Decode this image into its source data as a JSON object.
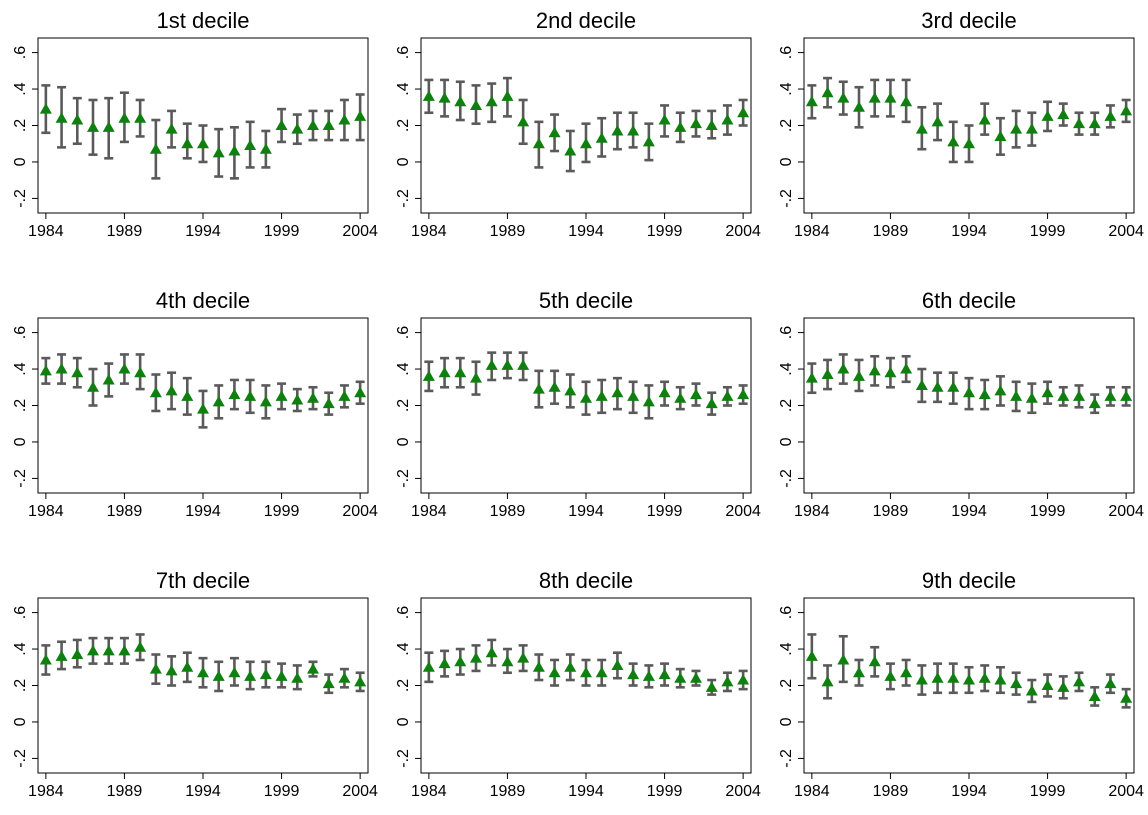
{
  "chart_data": [
    {
      "type": "scatter",
      "title": "1st decile",
      "x": [
        1984,
        1985,
        1986,
        1987,
        1988,
        1989,
        1990,
        1991,
        1992,
        1993,
        1994,
        1995,
        1996,
        1997,
        1998,
        1999,
        2000,
        2001,
        2002,
        2003,
        2004
      ],
      "y": [
        0.29,
        0.24,
        0.23,
        0.19,
        0.19,
        0.24,
        0.24,
        0.07,
        0.18,
        0.1,
        0.1,
        0.05,
        0.06,
        0.09,
        0.07,
        0.2,
        0.18,
        0.2,
        0.2,
        0.23,
        0.25
      ],
      "lower": [
        0.16,
        0.08,
        0.1,
        0.04,
        0.02,
        0.11,
        0.14,
        -0.09,
        0.08,
        0.02,
        0.0,
        -0.08,
        -0.09,
        -0.03,
        -0.03,
        0.11,
        0.1,
        0.12,
        0.12,
        0.12,
        0.12
      ],
      "upper": [
        0.42,
        0.41,
        0.35,
        0.34,
        0.35,
        0.38,
        0.34,
        0.23,
        0.28,
        0.21,
        0.2,
        0.18,
        0.19,
        0.22,
        0.17,
        0.29,
        0.26,
        0.28,
        0.28,
        0.34,
        0.37
      ],
      "xticks": [
        "1984",
        "1989",
        "1994",
        "1999",
        "2004"
      ],
      "xtick_values": [
        1984,
        1989,
        1994,
        1999,
        2004
      ],
      "yticks": [
        "-.2",
        "0",
        ".2",
        ".4",
        ".6"
      ],
      "ytick_values": [
        -0.2,
        0,
        0.2,
        0.4,
        0.6
      ],
      "xlim": [
        1983.5,
        2004.5
      ],
      "ylim": [
        -0.28,
        0.68
      ],
      "marker_color": "#0f7f0f",
      "ci_color": "#5a5a5a"
    },
    {
      "type": "scatter",
      "title": "2nd decile",
      "x": [
        1984,
        1985,
        1986,
        1987,
        1988,
        1989,
        1990,
        1991,
        1992,
        1993,
        1994,
        1995,
        1996,
        1997,
        1998,
        1999,
        2000,
        2001,
        2002,
        2003,
        2004
      ],
      "y": [
        0.36,
        0.35,
        0.33,
        0.31,
        0.33,
        0.36,
        0.22,
        0.1,
        0.16,
        0.06,
        0.1,
        0.13,
        0.17,
        0.17,
        0.11,
        0.23,
        0.19,
        0.21,
        0.2,
        0.23,
        0.27
      ],
      "lower": [
        0.27,
        0.25,
        0.23,
        0.21,
        0.22,
        0.25,
        0.1,
        -0.03,
        0.06,
        -0.05,
        0.0,
        0.03,
        0.07,
        0.08,
        0.01,
        0.14,
        0.11,
        0.14,
        0.13,
        0.15,
        0.2
      ],
      "upper": [
        0.45,
        0.45,
        0.44,
        0.42,
        0.43,
        0.46,
        0.34,
        0.22,
        0.26,
        0.17,
        0.21,
        0.24,
        0.27,
        0.27,
        0.21,
        0.31,
        0.27,
        0.28,
        0.28,
        0.31,
        0.34
      ],
      "xticks": [
        "1984",
        "1989",
        "1994",
        "1999",
        "2004"
      ],
      "xtick_values": [
        1984,
        1989,
        1994,
        1999,
        2004
      ],
      "yticks": [
        "-.2",
        "0",
        ".2",
        ".4",
        ".6"
      ],
      "ytick_values": [
        -0.2,
        0,
        0.2,
        0.4,
        0.6
      ],
      "xlim": [
        1983.5,
        2004.5
      ],
      "ylim": [
        -0.28,
        0.68
      ],
      "marker_color": "#0f7f0f",
      "ci_color": "#5a5a5a"
    },
    {
      "type": "scatter",
      "title": "3rd decile",
      "x": [
        1984,
        1985,
        1986,
        1987,
        1988,
        1989,
        1990,
        1991,
        1992,
        1993,
        1994,
        1995,
        1996,
        1997,
        1998,
        1999,
        2000,
        2001,
        2002,
        2003,
        2004
      ],
      "y": [
        0.33,
        0.38,
        0.35,
        0.3,
        0.35,
        0.35,
        0.33,
        0.18,
        0.22,
        0.11,
        0.1,
        0.23,
        0.14,
        0.18,
        0.18,
        0.25,
        0.26,
        0.21,
        0.21,
        0.25,
        0.28
      ],
      "lower": [
        0.24,
        0.3,
        0.26,
        0.19,
        0.25,
        0.25,
        0.22,
        0.07,
        0.12,
        0.0,
        0.0,
        0.15,
        0.04,
        0.08,
        0.09,
        0.17,
        0.2,
        0.15,
        0.15,
        0.19,
        0.22
      ],
      "upper": [
        0.42,
        0.46,
        0.44,
        0.41,
        0.45,
        0.45,
        0.45,
        0.3,
        0.32,
        0.22,
        0.2,
        0.32,
        0.24,
        0.28,
        0.27,
        0.33,
        0.32,
        0.27,
        0.27,
        0.31,
        0.34
      ],
      "xticks": [
        "1984",
        "1989",
        "1994",
        "1999",
        "2004"
      ],
      "xtick_values": [
        1984,
        1989,
        1994,
        1999,
        2004
      ],
      "yticks": [
        "-.2",
        "0",
        ".2",
        ".4",
        ".6"
      ],
      "ytick_values": [
        -0.2,
        0,
        0.2,
        0.4,
        0.6
      ],
      "xlim": [
        1983.5,
        2004.5
      ],
      "ylim": [
        -0.28,
        0.68
      ],
      "marker_color": "#0f7f0f",
      "ci_color": "#5a5a5a"
    },
    {
      "type": "scatter",
      "title": "4th decile",
      "x": [
        1984,
        1985,
        1986,
        1987,
        1988,
        1989,
        1990,
        1991,
        1992,
        1993,
        1994,
        1995,
        1996,
        1997,
        1998,
        1999,
        2000,
        2001,
        2002,
        2003,
        2004
      ],
      "y": [
        0.39,
        0.4,
        0.38,
        0.3,
        0.34,
        0.4,
        0.38,
        0.27,
        0.28,
        0.25,
        0.18,
        0.22,
        0.26,
        0.25,
        0.22,
        0.25,
        0.23,
        0.24,
        0.21,
        0.25,
        0.27
      ],
      "lower": [
        0.32,
        0.32,
        0.3,
        0.2,
        0.25,
        0.32,
        0.29,
        0.17,
        0.18,
        0.15,
        0.08,
        0.13,
        0.18,
        0.16,
        0.13,
        0.18,
        0.17,
        0.18,
        0.15,
        0.19,
        0.21
      ],
      "upper": [
        0.46,
        0.48,
        0.46,
        0.4,
        0.43,
        0.48,
        0.48,
        0.37,
        0.38,
        0.35,
        0.28,
        0.31,
        0.34,
        0.34,
        0.31,
        0.32,
        0.29,
        0.3,
        0.27,
        0.31,
        0.33
      ],
      "xticks": [
        "1984",
        "1989",
        "1994",
        "1999",
        "2004"
      ],
      "xtick_values": [
        1984,
        1989,
        1994,
        1999,
        2004
      ],
      "yticks": [
        "-.2",
        "0",
        ".2",
        ".4",
        ".6"
      ],
      "ytick_values": [
        -0.2,
        0,
        0.2,
        0.4,
        0.6
      ],
      "xlim": [
        1983.5,
        2004.5
      ],
      "ylim": [
        -0.28,
        0.68
      ],
      "marker_color": "#0f7f0f",
      "ci_color": "#5a5a5a"
    },
    {
      "type": "scatter",
      "title": "5th decile",
      "x": [
        1984,
        1985,
        1986,
        1987,
        1988,
        1989,
        1990,
        1991,
        1992,
        1993,
        1994,
        1995,
        1996,
        1997,
        1998,
        1999,
        2000,
        2001,
        2002,
        2003,
        2004
      ],
      "y": [
        0.36,
        0.38,
        0.38,
        0.35,
        0.42,
        0.42,
        0.42,
        0.29,
        0.3,
        0.28,
        0.24,
        0.25,
        0.27,
        0.25,
        0.22,
        0.27,
        0.24,
        0.26,
        0.21,
        0.25,
        0.26
      ],
      "lower": [
        0.28,
        0.3,
        0.3,
        0.26,
        0.34,
        0.35,
        0.34,
        0.19,
        0.21,
        0.19,
        0.15,
        0.16,
        0.18,
        0.16,
        0.13,
        0.2,
        0.18,
        0.2,
        0.15,
        0.2,
        0.21
      ],
      "upper": [
        0.44,
        0.46,
        0.46,
        0.44,
        0.49,
        0.49,
        0.49,
        0.39,
        0.39,
        0.37,
        0.33,
        0.34,
        0.35,
        0.33,
        0.31,
        0.33,
        0.3,
        0.32,
        0.27,
        0.3,
        0.31
      ],
      "xticks": [
        "1984",
        "1989",
        "1994",
        "1999",
        "2004"
      ],
      "xtick_values": [
        1984,
        1989,
        1994,
        1999,
        2004
      ],
      "yticks": [
        "-.2",
        "0",
        ".2",
        ".4",
        ".6"
      ],
      "ytick_values": [
        -0.2,
        0,
        0.2,
        0.4,
        0.6
      ],
      "xlim": [
        1983.5,
        2004.5
      ],
      "ylim": [
        -0.28,
        0.68
      ],
      "marker_color": "#0f7f0f",
      "ci_color": "#5a5a5a"
    },
    {
      "type": "scatter",
      "title": "6th decile",
      "x": [
        1984,
        1985,
        1986,
        1987,
        1988,
        1989,
        1990,
        1991,
        1992,
        1993,
        1994,
        1995,
        1996,
        1997,
        1998,
        1999,
        2000,
        2001,
        2002,
        2003,
        2004
      ],
      "y": [
        0.35,
        0.37,
        0.4,
        0.36,
        0.39,
        0.38,
        0.4,
        0.31,
        0.3,
        0.3,
        0.27,
        0.26,
        0.28,
        0.25,
        0.24,
        0.27,
        0.25,
        0.25,
        0.21,
        0.25,
        0.25
      ],
      "lower": [
        0.27,
        0.29,
        0.32,
        0.28,
        0.31,
        0.3,
        0.33,
        0.22,
        0.22,
        0.21,
        0.18,
        0.18,
        0.2,
        0.17,
        0.16,
        0.21,
        0.2,
        0.19,
        0.16,
        0.2,
        0.2
      ],
      "upper": [
        0.43,
        0.45,
        0.48,
        0.45,
        0.47,
        0.46,
        0.47,
        0.4,
        0.38,
        0.38,
        0.35,
        0.34,
        0.36,
        0.33,
        0.32,
        0.33,
        0.3,
        0.31,
        0.26,
        0.3,
        0.3
      ],
      "xticks": [
        "1984",
        "1989",
        "1994",
        "1999",
        "2004"
      ],
      "xtick_values": [
        1984,
        1989,
        1994,
        1999,
        2004
      ],
      "yticks": [
        "-.2",
        "0",
        ".2",
        ".4",
        ".6"
      ],
      "ytick_values": [
        -0.2,
        0,
        0.2,
        0.4,
        0.6
      ],
      "xlim": [
        1983.5,
        2004.5
      ],
      "ylim": [
        -0.28,
        0.68
      ],
      "marker_color": "#0f7f0f",
      "ci_color": "#5a5a5a"
    },
    {
      "type": "scatter",
      "title": "7th decile",
      "x": [
        1984,
        1985,
        1986,
        1987,
        1988,
        1989,
        1990,
        1991,
        1992,
        1993,
        1994,
        1995,
        1996,
        1997,
        1998,
        1999,
        2000,
        2001,
        2002,
        2003,
        2004
      ],
      "y": [
        0.34,
        0.36,
        0.37,
        0.39,
        0.39,
        0.39,
        0.41,
        0.29,
        0.28,
        0.3,
        0.27,
        0.25,
        0.27,
        0.25,
        0.26,
        0.25,
        0.24,
        0.29,
        0.21,
        0.24,
        0.22
      ],
      "lower": [
        0.26,
        0.29,
        0.3,
        0.32,
        0.32,
        0.32,
        0.34,
        0.21,
        0.2,
        0.22,
        0.19,
        0.17,
        0.2,
        0.18,
        0.19,
        0.19,
        0.18,
        0.25,
        0.16,
        0.19,
        0.17
      ],
      "upper": [
        0.42,
        0.44,
        0.45,
        0.46,
        0.46,
        0.46,
        0.48,
        0.37,
        0.36,
        0.38,
        0.35,
        0.33,
        0.35,
        0.33,
        0.33,
        0.32,
        0.31,
        0.33,
        0.26,
        0.29,
        0.27
      ],
      "xticks": [
        "1984",
        "1989",
        "1994",
        "1999",
        "2004"
      ],
      "xtick_values": [
        1984,
        1989,
        1994,
        1999,
        2004
      ],
      "yticks": [
        "-.2",
        "0",
        ".2",
        ".4",
        ".6"
      ],
      "ytick_values": [
        -0.2,
        0,
        0.2,
        0.4,
        0.6
      ],
      "xlim": [
        1983.5,
        2004.5
      ],
      "ylim": [
        -0.28,
        0.68
      ],
      "marker_color": "#0f7f0f",
      "ci_color": "#5a5a5a"
    },
    {
      "type": "scatter",
      "title": "8th decile",
      "x": [
        1984,
        1985,
        1986,
        1987,
        1988,
        1989,
        1990,
        1991,
        1992,
        1993,
        1994,
        1995,
        1996,
        1997,
        1998,
        1999,
        2000,
        2001,
        2002,
        2003,
        2004
      ],
      "y": [
        0.3,
        0.32,
        0.33,
        0.35,
        0.38,
        0.33,
        0.35,
        0.3,
        0.27,
        0.3,
        0.27,
        0.27,
        0.31,
        0.26,
        0.25,
        0.26,
        0.24,
        0.24,
        0.19,
        0.22,
        0.23
      ],
      "lower": [
        0.22,
        0.25,
        0.26,
        0.28,
        0.31,
        0.27,
        0.28,
        0.23,
        0.2,
        0.23,
        0.2,
        0.2,
        0.24,
        0.2,
        0.19,
        0.2,
        0.19,
        0.2,
        0.15,
        0.17,
        0.18
      ],
      "upper": [
        0.38,
        0.39,
        0.4,
        0.42,
        0.45,
        0.4,
        0.42,
        0.37,
        0.34,
        0.37,
        0.34,
        0.34,
        0.38,
        0.32,
        0.31,
        0.32,
        0.29,
        0.28,
        0.23,
        0.27,
        0.28
      ],
      "xticks": [
        "1984",
        "1989",
        "1994",
        "1999",
        "2004"
      ],
      "xtick_values": [
        1984,
        1989,
        1994,
        1999,
        2004
      ],
      "yticks": [
        "-.2",
        "0",
        ".2",
        ".4",
        ".6"
      ],
      "ytick_values": [
        -0.2,
        0,
        0.2,
        0.4,
        0.6
      ],
      "xlim": [
        1983.5,
        2004.5
      ],
      "ylim": [
        -0.28,
        0.68
      ],
      "marker_color": "#0f7f0f",
      "ci_color": "#5a5a5a"
    },
    {
      "type": "scatter",
      "title": "9th decile",
      "x": [
        1984,
        1985,
        1986,
        1987,
        1988,
        1989,
        1990,
        1991,
        1992,
        1993,
        1994,
        1995,
        1996,
        1997,
        1998,
        1999,
        2000,
        2001,
        2002,
        2003,
        2004
      ],
      "y": [
        0.36,
        0.22,
        0.34,
        0.27,
        0.33,
        0.25,
        0.27,
        0.23,
        0.24,
        0.24,
        0.23,
        0.24,
        0.23,
        0.21,
        0.17,
        0.2,
        0.19,
        0.22,
        0.14,
        0.21,
        0.13
      ],
      "lower": [
        0.24,
        0.13,
        0.22,
        0.2,
        0.25,
        0.18,
        0.2,
        0.15,
        0.16,
        0.16,
        0.16,
        0.17,
        0.16,
        0.15,
        0.11,
        0.14,
        0.13,
        0.17,
        0.09,
        0.16,
        0.08
      ],
      "upper": [
        0.48,
        0.31,
        0.47,
        0.34,
        0.41,
        0.32,
        0.34,
        0.31,
        0.32,
        0.32,
        0.3,
        0.31,
        0.3,
        0.27,
        0.23,
        0.26,
        0.25,
        0.27,
        0.19,
        0.26,
        0.18
      ],
      "xticks": [
        "1984",
        "1989",
        "1994",
        "1999",
        "2004"
      ],
      "xtick_values": [
        1984,
        1989,
        1994,
        1999,
        2004
      ],
      "yticks": [
        "-.2",
        "0",
        ".2",
        ".4",
        ".6"
      ],
      "ytick_values": [
        -0.2,
        0,
        0.2,
        0.4,
        0.6
      ],
      "xlim": [
        1983.5,
        2004.5
      ],
      "ylim": [
        -0.28,
        0.68
      ],
      "marker_color": "#0f7f0f",
      "ci_color": "#5a5a5a"
    }
  ]
}
